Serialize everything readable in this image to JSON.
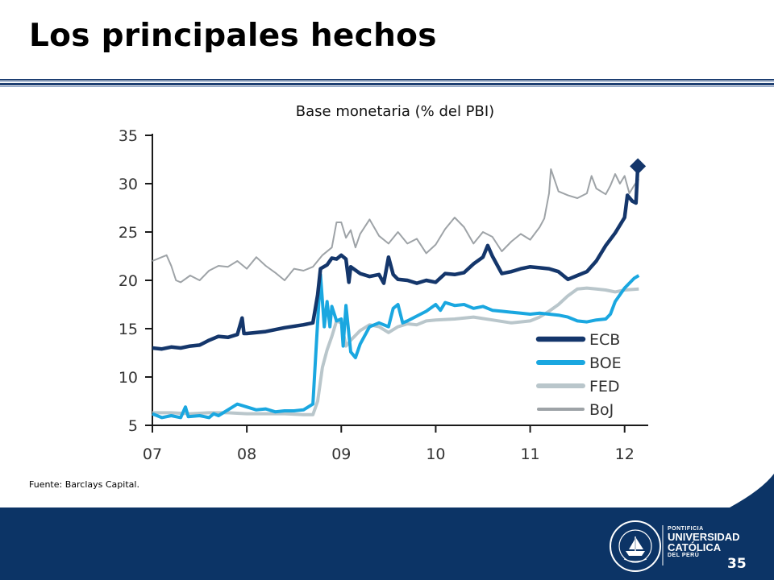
{
  "slide": {
    "title": "Los principales hechos",
    "source": "Fuente: Barclays Capital.",
    "page_number": "35"
  },
  "logo": {
    "line1": "PONTIFICIA",
    "line2": "UNIVERSIDAD",
    "line3": "CATÓLICA",
    "line4": "DEL PERÚ",
    "seal_text": "ET LUX IN TENEBRIS LUCET",
    "seal_year": "MCMXVII"
  },
  "colors": {
    "ECB": "#14366b",
    "BOE": "#1aa7e0",
    "FED": "#b9c6cb",
    "BoJ": "#9ea3a7",
    "footer": "#0c3466"
  },
  "chart_data": {
    "type": "line",
    "title": "Base monetaria (% del PBI)",
    "ylim": [
      5,
      35
    ],
    "yticks": [
      "5",
      "10",
      "15",
      "20",
      "25",
      "30",
      "35"
    ],
    "xlim": [
      2007.0,
      2012.25
    ],
    "xticks": [
      {
        "value": 2007,
        "label": "07"
      },
      {
        "value": 2008,
        "label": "08"
      },
      {
        "value": 2009,
        "label": "09"
      },
      {
        "value": 2010,
        "label": "10"
      },
      {
        "value": 2011,
        "label": "11"
      },
      {
        "value": 2012,
        "label": "12"
      }
    ],
    "grid": false,
    "legend": "bottom-right",
    "series": [
      {
        "name": "ECB",
        "points": [
          [
            2007.0,
            13.0
          ],
          [
            2007.1,
            12.9
          ],
          [
            2007.2,
            13.1
          ],
          [
            2007.3,
            13.0
          ],
          [
            2007.4,
            13.2
          ],
          [
            2007.5,
            13.3
          ],
          [
            2007.6,
            13.8
          ],
          [
            2007.7,
            14.2
          ],
          [
            2007.8,
            14.1
          ],
          [
            2007.9,
            14.4
          ],
          [
            2007.95,
            16.1
          ],
          [
            2007.97,
            14.5
          ],
          [
            2008.0,
            14.5
          ],
          [
            2008.2,
            14.7
          ],
          [
            2008.4,
            15.1
          ],
          [
            2008.6,
            15.4
          ],
          [
            2008.7,
            15.6
          ],
          [
            2008.75,
            18.5
          ],
          [
            2008.78,
            21.2
          ],
          [
            2008.85,
            21.6
          ],
          [
            2008.9,
            22.3
          ],
          [
            2008.95,
            22.2
          ],
          [
            2009.0,
            22.6
          ],
          [
            2009.05,
            22.2
          ],
          [
            2009.08,
            19.8
          ],
          [
            2009.1,
            21.4
          ],
          [
            2009.2,
            20.7
          ],
          [
            2009.3,
            20.4
          ],
          [
            2009.4,
            20.6
          ],
          [
            2009.45,
            19.7
          ],
          [
            2009.5,
            22.4
          ],
          [
            2009.55,
            20.6
          ],
          [
            2009.6,
            20.1
          ],
          [
            2009.7,
            20.0
          ],
          [
            2009.8,
            19.7
          ],
          [
            2009.9,
            20.0
          ],
          [
            2010.0,
            19.8
          ],
          [
            2010.1,
            20.7
          ],
          [
            2010.2,
            20.6
          ],
          [
            2010.3,
            20.8
          ],
          [
            2010.4,
            21.7
          ],
          [
            2010.5,
            22.4
          ],
          [
            2010.55,
            23.6
          ],
          [
            2010.6,
            22.5
          ],
          [
            2010.7,
            20.7
          ],
          [
            2010.8,
            20.9
          ],
          [
            2010.9,
            21.2
          ],
          [
            2011.0,
            21.4
          ],
          [
            2011.1,
            21.3
          ],
          [
            2011.2,
            21.2
          ],
          [
            2011.3,
            20.9
          ],
          [
            2011.4,
            20.1
          ],
          [
            2011.5,
            20.5
          ],
          [
            2011.6,
            20.9
          ],
          [
            2011.7,
            22.0
          ],
          [
            2011.8,
            23.6
          ],
          [
            2011.9,
            24.9
          ],
          [
            2012.0,
            26.5
          ],
          [
            2012.03,
            28.8
          ],
          [
            2012.08,
            28.2
          ],
          [
            2012.12,
            28.0
          ],
          [
            2012.14,
            31.8
          ]
        ]
      },
      {
        "name": "BOE",
        "points": [
          [
            2007.0,
            6.2
          ],
          [
            2007.1,
            5.8
          ],
          [
            2007.2,
            6.0
          ],
          [
            2007.3,
            5.8
          ],
          [
            2007.35,
            6.9
          ],
          [
            2007.38,
            5.9
          ],
          [
            2007.5,
            6.0
          ],
          [
            2007.6,
            5.8
          ],
          [
            2007.65,
            6.2
          ],
          [
            2007.7,
            6.0
          ],
          [
            2007.8,
            6.6
          ],
          [
            2007.9,
            7.2
          ],
          [
            2008.0,
            6.9
          ],
          [
            2008.1,
            6.6
          ],
          [
            2008.2,
            6.7
          ],
          [
            2008.3,
            6.4
          ],
          [
            2008.4,
            6.5
          ],
          [
            2008.5,
            6.5
          ],
          [
            2008.6,
            6.6
          ],
          [
            2008.7,
            7.2
          ],
          [
            2008.74,
            14.0
          ],
          [
            2008.78,
            20.6
          ],
          [
            2008.82,
            15.2
          ],
          [
            2008.85,
            17.8
          ],
          [
            2008.88,
            15.2
          ],
          [
            2008.9,
            17.3
          ],
          [
            2008.95,
            15.8
          ],
          [
            2009.0,
            16.0
          ],
          [
            2009.02,
            13.2
          ],
          [
            2009.05,
            17.4
          ],
          [
            2009.1,
            12.6
          ],
          [
            2009.15,
            12.0
          ],
          [
            2009.2,
            13.4
          ],
          [
            2009.3,
            15.2
          ],
          [
            2009.4,
            15.6
          ],
          [
            2009.5,
            15.2
          ],
          [
            2009.55,
            17.1
          ],
          [
            2009.6,
            17.5
          ],
          [
            2009.65,
            15.6
          ],
          [
            2009.7,
            15.8
          ],
          [
            2009.8,
            16.3
          ],
          [
            2009.9,
            16.8
          ],
          [
            2010.0,
            17.5
          ],
          [
            2010.05,
            16.9
          ],
          [
            2010.1,
            17.7
          ],
          [
            2010.2,
            17.4
          ],
          [
            2010.3,
            17.5
          ],
          [
            2010.4,
            17.1
          ],
          [
            2010.5,
            17.3
          ],
          [
            2010.6,
            16.9
          ],
          [
            2010.7,
            16.8
          ],
          [
            2010.8,
            16.7
          ],
          [
            2010.9,
            16.6
          ],
          [
            2011.0,
            16.5
          ],
          [
            2011.1,
            16.6
          ],
          [
            2011.2,
            16.5
          ],
          [
            2011.3,
            16.4
          ],
          [
            2011.4,
            16.2
          ],
          [
            2011.5,
            15.8
          ],
          [
            2011.6,
            15.7
          ],
          [
            2011.7,
            15.9
          ],
          [
            2011.8,
            16.0
          ],
          [
            2011.85,
            16.5
          ],
          [
            2011.9,
            17.8
          ],
          [
            2012.0,
            19.2
          ],
          [
            2012.1,
            20.2
          ],
          [
            2012.15,
            20.5
          ]
        ]
      },
      {
        "name": "FED",
        "points": [
          [
            2007.0,
            6.3
          ],
          [
            2007.2,
            6.3
          ],
          [
            2007.4,
            6.2
          ],
          [
            2007.6,
            6.3
          ],
          [
            2007.8,
            6.3
          ],
          [
            2008.0,
            6.2
          ],
          [
            2008.2,
            6.2
          ],
          [
            2008.4,
            6.2
          ],
          [
            2008.6,
            6.1
          ],
          [
            2008.7,
            6.1
          ],
          [
            2008.75,
            7.5
          ],
          [
            2008.8,
            11.0
          ],
          [
            2008.85,
            12.8
          ],
          [
            2008.9,
            14.2
          ],
          [
            2008.95,
            15.8
          ],
          [
            2009.0,
            15.6
          ],
          [
            2009.05,
            13.2
          ],
          [
            2009.1,
            13.8
          ],
          [
            2009.2,
            14.8
          ],
          [
            2009.3,
            15.4
          ],
          [
            2009.4,
            15.2
          ],
          [
            2009.5,
            14.6
          ],
          [
            2009.6,
            15.2
          ],
          [
            2009.7,
            15.5
          ],
          [
            2009.8,
            15.4
          ],
          [
            2009.9,
            15.8
          ],
          [
            2010.0,
            15.9
          ],
          [
            2010.2,
            16.0
          ],
          [
            2010.4,
            16.2
          ],
          [
            2010.6,
            15.9
          ],
          [
            2010.8,
            15.6
          ],
          [
            2011.0,
            15.8
          ],
          [
            2011.1,
            16.2
          ],
          [
            2011.2,
            16.8
          ],
          [
            2011.3,
            17.5
          ],
          [
            2011.4,
            18.4
          ],
          [
            2011.5,
            19.1
          ],
          [
            2011.6,
            19.2
          ],
          [
            2011.7,
            19.1
          ],
          [
            2011.8,
            19.0
          ],
          [
            2011.9,
            18.8
          ],
          [
            2012.0,
            19.0
          ],
          [
            2012.15,
            19.1
          ]
        ]
      },
      {
        "name": "BoJ",
        "points": [
          [
            2007.0,
            22.0
          ],
          [
            2007.1,
            22.4
          ],
          [
            2007.15,
            22.6
          ],
          [
            2007.2,
            21.5
          ],
          [
            2007.25,
            20.0
          ],
          [
            2007.3,
            19.8
          ],
          [
            2007.4,
            20.5
          ],
          [
            2007.5,
            20.0
          ],
          [
            2007.6,
            21.0
          ],
          [
            2007.7,
            21.5
          ],
          [
            2007.8,
            21.4
          ],
          [
            2007.9,
            22.0
          ],
          [
            2008.0,
            21.2
          ],
          [
            2008.1,
            22.4
          ],
          [
            2008.2,
            21.5
          ],
          [
            2008.3,
            20.8
          ],
          [
            2008.4,
            20.0
          ],
          [
            2008.5,
            21.2
          ],
          [
            2008.6,
            21.0
          ],
          [
            2008.7,
            21.4
          ],
          [
            2008.8,
            22.6
          ],
          [
            2008.9,
            23.4
          ],
          [
            2008.95,
            26.0
          ],
          [
            2009.0,
            26.0
          ],
          [
            2009.05,
            24.4
          ],
          [
            2009.1,
            25.2
          ],
          [
            2009.15,
            23.4
          ],
          [
            2009.2,
            24.8
          ],
          [
            2009.3,
            26.3
          ],
          [
            2009.4,
            24.6
          ],
          [
            2009.5,
            23.8
          ],
          [
            2009.6,
            25.0
          ],
          [
            2009.7,
            23.8
          ],
          [
            2009.8,
            24.3
          ],
          [
            2009.9,
            22.8
          ],
          [
            2010.0,
            23.7
          ],
          [
            2010.1,
            25.3
          ],
          [
            2010.2,
            26.5
          ],
          [
            2010.3,
            25.5
          ],
          [
            2010.4,
            23.8
          ],
          [
            2010.5,
            25.0
          ],
          [
            2010.6,
            24.5
          ],
          [
            2010.7,
            23.0
          ],
          [
            2010.8,
            24.0
          ],
          [
            2010.9,
            24.8
          ],
          [
            2011.0,
            24.2
          ],
          [
            2011.1,
            25.5
          ],
          [
            2011.15,
            26.4
          ],
          [
            2011.2,
            29.0
          ],
          [
            2011.22,
            31.5
          ],
          [
            2011.3,
            29.2
          ],
          [
            2011.4,
            28.8
          ],
          [
            2011.5,
            28.5
          ],
          [
            2011.6,
            29.0
          ],
          [
            2011.65,
            30.8
          ],
          [
            2011.7,
            29.5
          ],
          [
            2011.8,
            28.9
          ],
          [
            2011.85,
            29.8
          ],
          [
            2011.9,
            31.0
          ],
          [
            2011.95,
            30.0
          ],
          [
            2012.0,
            30.8
          ],
          [
            2012.05,
            29.0
          ],
          [
            2012.1,
            29.8
          ],
          [
            2012.15,
            30.5
          ]
        ]
      }
    ],
    "marker": {
      "series": "ECB",
      "x": 2012.14,
      "y": 31.8,
      "shape": "diamond"
    }
  }
}
